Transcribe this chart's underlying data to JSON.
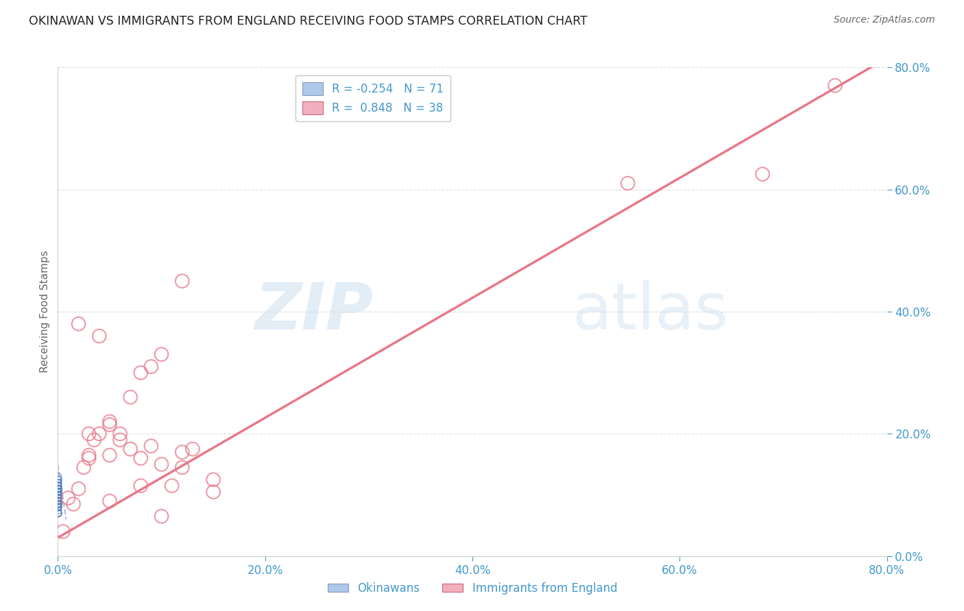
{
  "title": "OKINAWAN VS IMMIGRANTS FROM ENGLAND RECEIVING FOOD STAMPS CORRELATION CHART",
  "source": "Source: ZipAtlas.com",
  "ylabel": "Receiving Food Stamps",
  "watermark_zip": "ZIP",
  "watermark_atlas": "atlas",
  "legend_line1": "R = -0.254   N = 71",
  "legend_line2": "R =  0.848   N = 38",
  "legend_label1": "Okinawans",
  "legend_label2": "Immigrants from England",
  "legend_color1": "#adc8e8",
  "legend_color2": "#f2b0be",
  "okinawan_color": "#5580bb",
  "england_color": "#e8788a",
  "trend_okinawan_color": "#aabbdd",
  "trend_england_color": "#e8788a",
  "okinawan_points_x": [
    0.0002,
    0.0003,
    0.0001,
    0.0004,
    0.0002,
    0.0001,
    0.0005,
    0.0002,
    0.0003,
    0.0001,
    0.0002,
    0.0001,
    0.0001,
    0.0002,
    0.0003,
    0.0001,
    0.0002,
    0.0001,
    0.0002,
    0.0001,
    0.0003,
    0.0002,
    0.0001,
    0.0004,
    0.0002,
    0.0003,
    0.0001,
    0.0002,
    0.0001,
    0.0002,
    0.0001,
    0.0003,
    0.0002,
    0.0001,
    0.0004,
    0.0002,
    0.0003,
    0.0001,
    0.0002,
    0.0001,
    0.0003,
    0.0002,
    0.0001,
    0.0004,
    0.0002,
    0.0003,
    0.0001,
    0.0002,
    0.0001,
    0.0002,
    0.0001,
    0.0003,
    0.0002,
    0.0001,
    0.0004,
    0.0002,
    0.0003,
    0.0001,
    0.0002,
    0.0001,
    0.0003,
    0.0002,
    0.0001,
    0.0004,
    0.0002,
    0.0003,
    0.0001,
    0.0002,
    0.0001,
    0.0002,
    0.0001
  ],
  "okinawan_points_y": [
    0.13,
    0.125,
    0.1,
    0.095,
    0.11,
    0.08,
    0.105,
    0.09,
    0.085,
    0.12,
    0.105,
    0.095,
    0.085,
    0.115,
    0.075,
    0.095,
    0.1,
    0.08,
    0.09,
    0.115,
    0.1,
    0.125,
    0.095,
    0.085,
    0.1,
    0.09,
    0.11,
    0.07,
    0.08,
    0.095,
    0.1,
    0.085,
    0.11,
    0.09,
    0.105,
    0.125,
    0.08,
    0.09,
    0.115,
    0.07,
    0.1,
    0.095,
    0.085,
    0.105,
    0.095,
    0.11,
    0.07,
    0.08,
    0.09,
    0.1,
    0.085,
    0.11,
    0.09,
    0.105,
    0.12,
    0.08,
    0.09,
    0.115,
    0.07,
    0.1,
    0.095,
    0.085,
    0.105,
    0.095,
    0.11,
    0.07,
    0.08,
    0.09,
    0.1,
    0.085,
    0.11
  ],
  "england_points_x": [
    0.005,
    0.01,
    0.015,
    0.02,
    0.025,
    0.03,
    0.035,
    0.04,
    0.05,
    0.06,
    0.07,
    0.08,
    0.09,
    0.1,
    0.12,
    0.03,
    0.05,
    0.07,
    0.09,
    0.11,
    0.13,
    0.15,
    0.02,
    0.04,
    0.06,
    0.08,
    0.1,
    0.12,
    0.15,
    0.03,
    0.05,
    0.08,
    0.12,
    0.05,
    0.1,
    0.55,
    0.68,
    0.75
  ],
  "england_points_y": [
    0.04,
    0.095,
    0.085,
    0.11,
    0.145,
    0.165,
    0.19,
    0.2,
    0.22,
    0.19,
    0.26,
    0.3,
    0.31,
    0.33,
    0.45,
    0.16,
    0.215,
    0.175,
    0.18,
    0.115,
    0.175,
    0.105,
    0.38,
    0.36,
    0.2,
    0.16,
    0.15,
    0.17,
    0.125,
    0.2,
    0.165,
    0.115,
    0.145,
    0.09,
    0.065,
    0.61,
    0.625,
    0.77
  ],
  "trend_england_x0": 0.0,
  "trend_england_y0": 0.03,
  "trend_england_x1": 0.8,
  "trend_england_y1": 0.815,
  "trend_okinawan_x0": 0.0,
  "trend_okinawan_y0": 0.15,
  "trend_okinawan_x1": 0.008,
  "trend_okinawan_y1": 0.06,
  "xlim": [
    0.0,
    0.8
  ],
  "ylim": [
    0.0,
    0.8
  ],
  "xtick_positions": [
    0.0,
    0.2,
    0.4,
    0.6,
    0.8
  ],
  "ytick_positions": [
    0.0,
    0.2,
    0.4,
    0.6,
    0.8
  ],
  "xtick_labels": [
    "0.0%",
    "20.0%",
    "40.0%",
    "60.0%",
    "80.0%"
  ],
  "ytick_labels": [
    "0.0%",
    "20.0%",
    "40.0%",
    "60.0%",
    "80.0%"
  ],
  "grid_color": "#dddddd",
  "bg_color": "#ffffff",
  "title_color": "#222222",
  "axis_label_color": "#666666",
  "tick_color": "#4499cc"
}
